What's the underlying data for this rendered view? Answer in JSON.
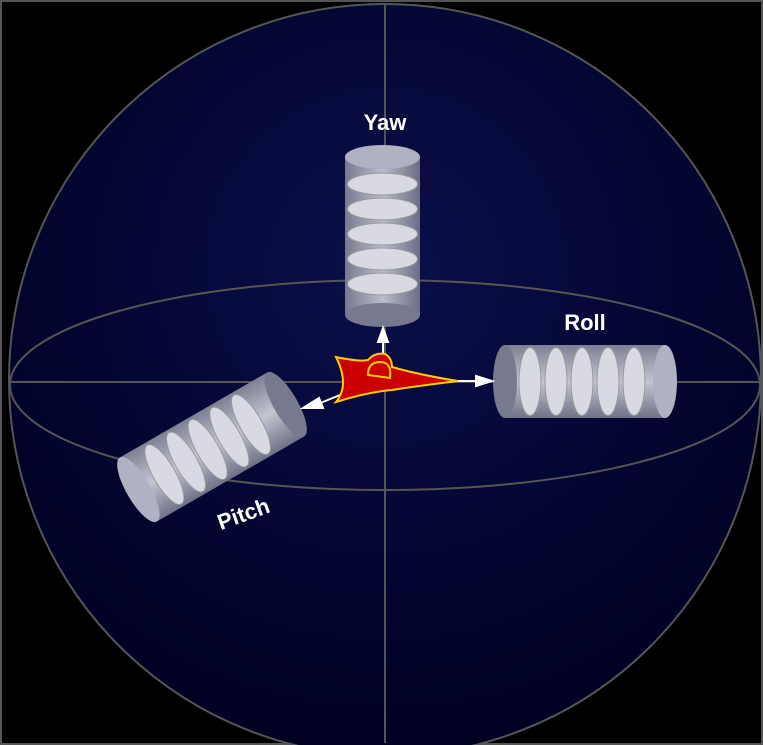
{
  "nodes": [
    {
      "label": "Yaw"
    },
    {
      "label": "Roll"
    },
    {
      "label": "Pitch"
    }
  ]
}
